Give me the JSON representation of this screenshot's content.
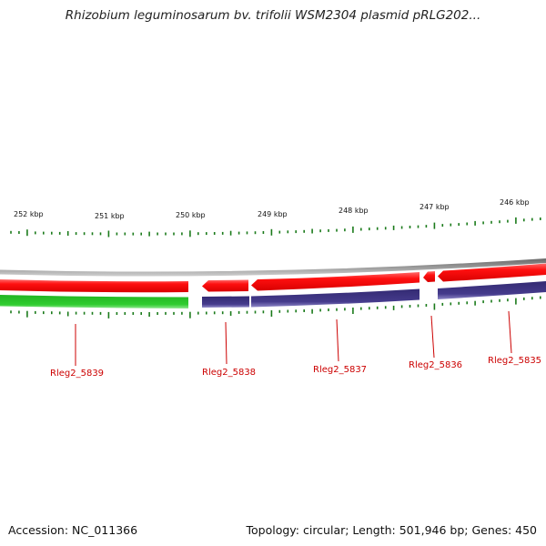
{
  "title": "Rhizobium leguminosarum bv. trifolii WSM2304 plasmid pRLG202...",
  "accession_text": "Accession: NC_011366",
  "topology_text": "Topology: circular; Length: 501,946 bp; Genes: 450",
  "kbp_labels": [
    "252 kbp",
    "251 kbp",
    "250 kbp",
    "249 kbp",
    "248 kbp",
    "247 kbp",
    "246 kbp"
  ],
  "genes": [
    {
      "name": "Rleg2_5839",
      "strand": "minus",
      "color": "#2fc62f"
    },
    {
      "name": "Rleg2_5838",
      "strand": "plus_and_minus",
      "color": "#e80000"
    },
    {
      "name": "Rleg2_5837",
      "strand": "plus_and_minus",
      "color": "#e80000"
    },
    {
      "name": "Rleg2_5836",
      "strand": "plus",
      "color": "#e80000"
    },
    {
      "name": "Rleg2_5835",
      "strand": "plus_and_minus",
      "color": "#e80000"
    }
  ],
  "colors": {
    "forward_gene": "#e80000",
    "reverse_gene_a": "#2fc62f",
    "reverse_gene_b": "#3d3480",
    "backbone": "#8a8a8a",
    "tick": "#1a7a1a",
    "gene_label": "#cc0000"
  }
}
